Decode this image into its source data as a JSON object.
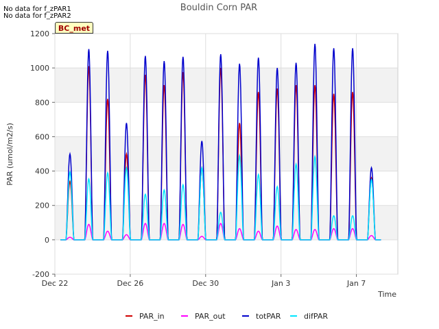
{
  "notes": [
    "No data for f_zPAR1",
    "No data for f_zPAR2"
  ],
  "badge": "BC_met",
  "chart_data": {
    "type": "line",
    "title": "Bouldin Corn PAR",
    "xlabel": "Time",
    "ylabel": "PAR (umol/m2/s)",
    "ylim": [
      -200,
      1200
    ],
    "yticks": [
      -200,
      0,
      200,
      400,
      600,
      800,
      1000,
      1200
    ],
    "xlim": [
      0,
      18.2
    ],
    "xticks": [
      {
        "x": 0,
        "label": "Dec 22"
      },
      {
        "x": 4,
        "label": "Dec 26"
      },
      {
        "x": 8,
        "label": "Dec 30"
      },
      {
        "x": 12,
        "label": "Jan 3"
      },
      {
        "x": 16,
        "label": "Jan 7"
      }
    ],
    "grid": true,
    "legend_position": "bottom",
    "days": [
      0.8,
      1.8,
      2.8,
      3.8,
      4.8,
      5.8,
      6.8,
      7.8,
      8.8,
      9.8,
      10.8,
      11.8,
      12.8,
      13.8,
      14.8,
      15.8,
      16.8
    ],
    "series": [
      {
        "name": "PAR_in",
        "color": "#d00000",
        "peaks": [
          340,
          1010,
          820,
          500,
          960,
          900,
          975,
          420,
          1000,
          680,
          860,
          880,
          900,
          900,
          850,
          860,
          360
        ]
      },
      {
        "name": "PAR_out",
        "color": "#ff00ff",
        "peaks": [
          15,
          90,
          50,
          30,
          95,
          95,
          90,
          20,
          95,
          65,
          50,
          80,
          60,
          60,
          65,
          65,
          25
        ]
      },
      {
        "name": "totPAR",
        "color": "#0000cc",
        "peaks": [
          500,
          1110,
          1100,
          680,
          1070,
          1040,
          1065,
          575,
          1080,
          1025,
          1060,
          1000,
          1030,
          1140,
          1115,
          1115,
          420
        ]
      },
      {
        "name": "difPAR",
        "color": "#00e5ff",
        "peaks": [
          395,
          355,
          390,
          420,
          265,
          290,
          320,
          420,
          160,
          490,
          380,
          310,
          440,
          485,
          140,
          140,
          350
        ]
      }
    ]
  }
}
